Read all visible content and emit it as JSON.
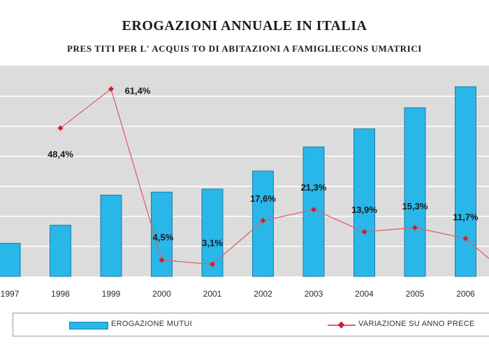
{
  "title": "EROGAZIONI ANNUALE IN ITALIA",
  "subtitle": "PRES TITI PER L' ACQUIS TO DI ABITAZIONI A FAMIGLIECONS UMATRICI",
  "legend": {
    "bars_label": "EROGAZIONE MUTUI",
    "line_label": "VARIAZIONE SU ANNO PRECE"
  },
  "colors": {
    "bar_fill": "#29b6e8",
    "bar_stroke": "#1b7ea8",
    "line": "#e0606a",
    "marker": "#d21f2a",
    "plot_background": "#dcdcdc",
    "gridline": "#ffffff"
  },
  "chart_data": {
    "type": "bar",
    "categories": [
      "1997",
      "1998",
      "1999",
      "2000",
      "2001",
      "2002",
      "2003",
      "2004",
      "2005",
      "2006"
    ],
    "series": [
      {
        "name": "EROGAZIONE MUTUI",
        "type": "bar",
        "values": [
          1.1,
          1.7,
          2.7,
          2.8,
          2.9,
          3.5,
          4.3,
          4.9,
          5.6,
          6.3
        ]
      },
      {
        "name": "VARIAZIONE SU ANNO PRECE",
        "type": "line",
        "values": [
          null,
          48.4,
          61.4,
          4.5,
          3.1,
          17.6,
          21.3,
          13.9,
          15.3,
          11.7
        ],
        "labels": [
          "",
          "48,4%",
          "61,4%",
          "4,5%",
          "3,1%",
          "17,6%",
          "21,3%",
          "13,9%",
          "15,3%",
          "11,7%"
        ]
      }
    ],
    "grid": true,
    "legend_position": "bottom"
  }
}
